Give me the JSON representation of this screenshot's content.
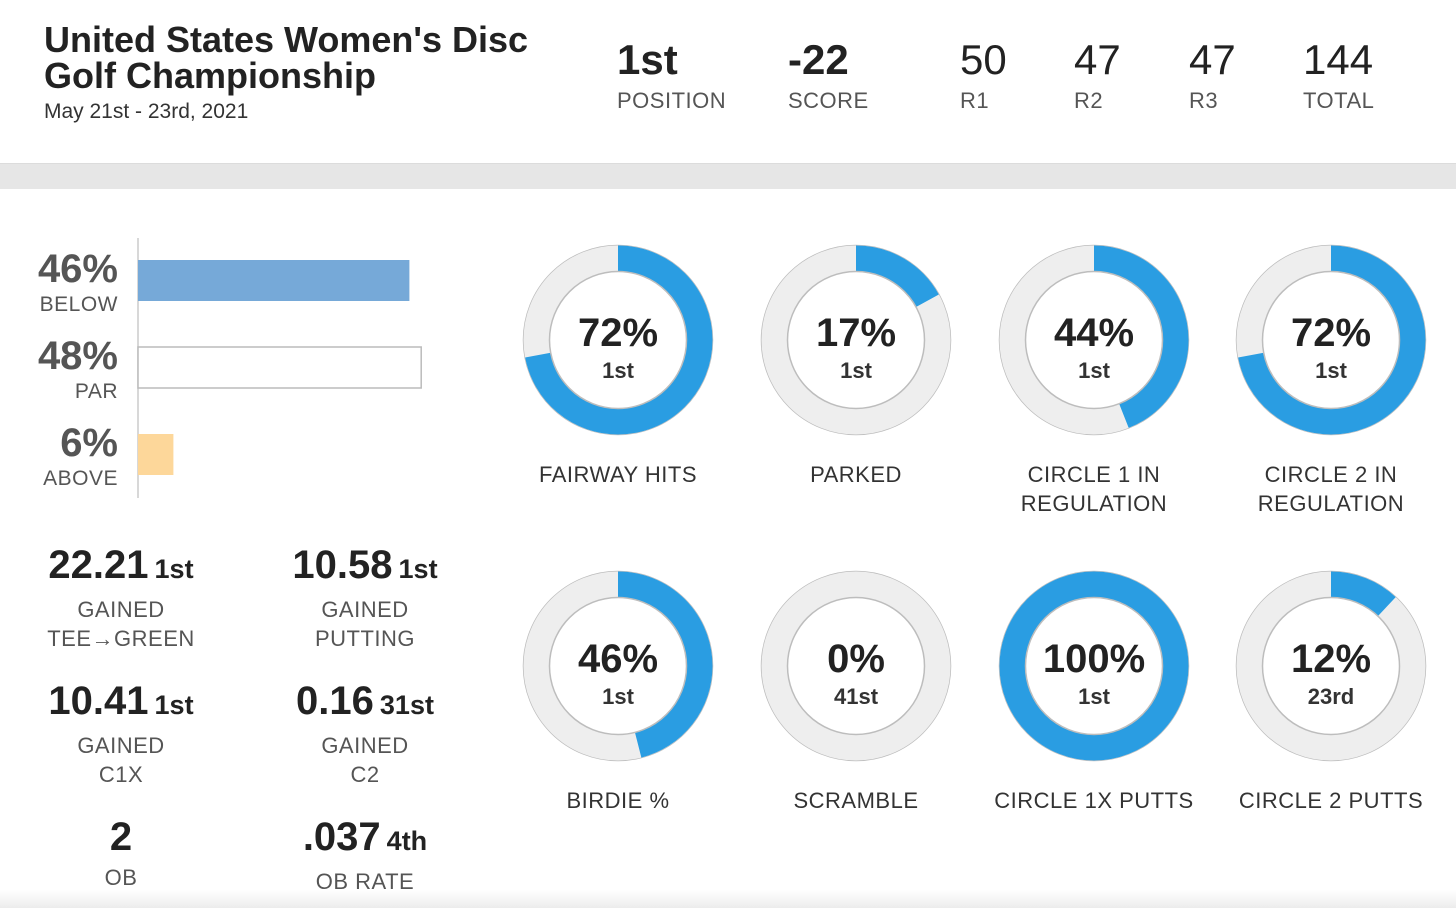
{
  "header": {
    "title": "United States Women's Disc Golf Championship",
    "date": "May 21st - 23rd, 2021",
    "stats": [
      {
        "value": "1st",
        "label": "POSITION",
        "bold": true
      },
      {
        "value": "-22",
        "label": "SCORE",
        "bold": true
      },
      {
        "value": "50",
        "label": "R1",
        "bold": false
      },
      {
        "value": "47",
        "label": "R2",
        "bold": false
      },
      {
        "value": "47",
        "label": "R3",
        "bold": false
      },
      {
        "value": "144",
        "label": "TOTAL",
        "bold": false
      }
    ]
  },
  "gained": [
    {
      "value": "22.21",
      "rank": "1st",
      "label_lines": [
        "GAINED",
        "TEE→GREEN"
      ]
    },
    {
      "value": "10.58",
      "rank": "1st",
      "label_lines": [
        "GAINED",
        "PUTTING"
      ]
    },
    {
      "value": "10.41",
      "rank": "1st",
      "label_lines": [
        "GAINED",
        "C1X"
      ]
    },
    {
      "value": "0.16",
      "rank": "31st",
      "label_lines": [
        "GAINED",
        "C2"
      ]
    },
    {
      "value": "2",
      "rank": "",
      "label_lines": [
        "OB"
      ]
    },
    {
      "value": ".037",
      "rank": "4th",
      "label_lines": [
        "OB RATE"
      ]
    }
  ],
  "colors": {
    "donut_fill": "#2a9de2",
    "donut_track": "#eeeeee",
    "bar_below": "#76a9d8",
    "bar_par": "#ffffff",
    "bar_above": "#fdd79a"
  },
  "chart_data": [
    {
      "type": "bar",
      "orientation": "horizontal",
      "categories": [
        "BELOW",
        "PAR",
        "ABOVE"
      ],
      "values": [
        46,
        48,
        6
      ],
      "value_labels": [
        "46%",
        "48%",
        "6%"
      ],
      "colors": [
        "#76a9d8",
        "#ffffff",
        "#fdd79a"
      ],
      "xlim": [
        0,
        100
      ]
    },
    {
      "type": "pie",
      "style": "donut",
      "items": [
        {
          "label_lines": [
            "FAIRWAY HITS"
          ],
          "percent": 72,
          "value_label": "72%",
          "rank": "1st"
        },
        {
          "label_lines": [
            "PARKED"
          ],
          "percent": 17,
          "value_label": "17%",
          "rank": "1st"
        },
        {
          "label_lines": [
            "CIRCLE 1 IN",
            "REGULATION"
          ],
          "percent": 44,
          "value_label": "44%",
          "rank": "1st"
        },
        {
          "label_lines": [
            "CIRCLE 2 IN",
            "REGULATION"
          ],
          "percent": 72,
          "value_label": "72%",
          "rank": "1st"
        },
        {
          "label_lines": [
            "BIRDIE %"
          ],
          "percent": 46,
          "value_label": "46%",
          "rank": "1st"
        },
        {
          "label_lines": [
            "SCRAMBLE"
          ],
          "percent": 0,
          "value_label": "0%",
          "rank": "41st"
        },
        {
          "label_lines": [
            "CIRCLE 1X PUTTS"
          ],
          "percent": 100,
          "value_label": "100%",
          "rank": "1st"
        },
        {
          "label_lines": [
            "CIRCLE 2 PUTTS"
          ],
          "percent": 12,
          "value_label": "12%",
          "rank": "23rd"
        }
      ]
    }
  ]
}
